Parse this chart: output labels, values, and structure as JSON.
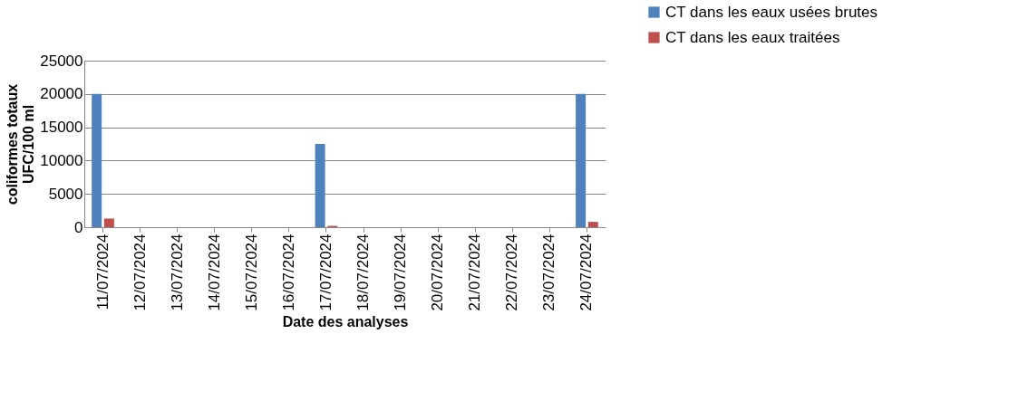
{
  "chart_data": {
    "type": "bar",
    "xlabel": "Date des analyses",
    "ylabel": "coliformes totaux\nUFC/100 ml",
    "categories": [
      "11/07/2024",
      "12/07/2024",
      "13/07/2024",
      "14/07/2024",
      "15/07/2024",
      "16/07/2024",
      "17/07/2024",
      "18/07/2024",
      "19/07/2024",
      "20/07/2024",
      "21/07/2024",
      "22/07/2024",
      "23/07/2024",
      "24/07/2024"
    ],
    "series": [
      {
        "name": "CT dans les eaux usées brutes",
        "color": "#4f81bd",
        "values": [
          20000,
          null,
          null,
          null,
          null,
          null,
          12500,
          null,
          null,
          null,
          null,
          null,
          null,
          20000
        ]
      },
      {
        "name": "CT dans les eaux traitées",
        "color": "#c0504d",
        "values": [
          1300,
          null,
          null,
          null,
          null,
          null,
          200,
          null,
          null,
          null,
          null,
          null,
          null,
          800
        ]
      }
    ],
    "ylim": [
      0,
      25000
    ],
    "yticks": [
      0,
      5000,
      10000,
      15000,
      20000,
      25000
    ],
    "grid": "y",
    "legend": "top right"
  }
}
